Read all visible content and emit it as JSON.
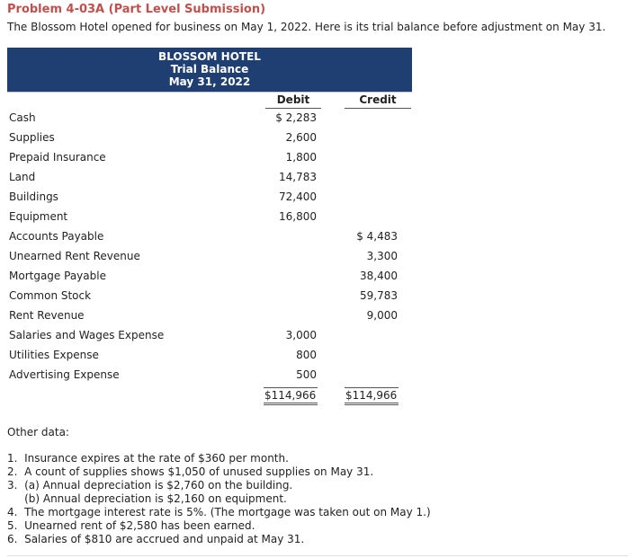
{
  "problem_title": "Problem 4-03A (Part Level Submission)",
  "intro": "The Blossom Hotel opened for business on May 1, 2022. Here is its trial balance before adjustment on May 31.",
  "trial_balance": {
    "company": "BLOSSOM HOTEL",
    "statement": "Trial Balance",
    "date": "May 31, 2022",
    "debit_header": "Debit",
    "credit_header": "Credit",
    "accounts": [
      {
        "name": "Cash",
        "debit": "$ 2,283",
        "credit": ""
      },
      {
        "name": "Supplies",
        "debit": "2,600",
        "credit": ""
      },
      {
        "name": "Prepaid Insurance",
        "debit": "1,800",
        "credit": ""
      },
      {
        "name": "Land",
        "debit": "14,783",
        "credit": ""
      },
      {
        "name": "Buildings",
        "debit": "72,400",
        "credit": ""
      },
      {
        "name": "Equipment",
        "debit": "16,800",
        "credit": ""
      },
      {
        "name": "Accounts Payable",
        "debit": "",
        "credit": "$ 4,483"
      },
      {
        "name": "Unearned Rent Revenue",
        "debit": "",
        "credit": "3,300"
      },
      {
        "name": "Mortgage Payable",
        "debit": "",
        "credit": "38,400"
      },
      {
        "name": "Common Stock",
        "debit": "",
        "credit": "59,783"
      },
      {
        "name": "Rent Revenue",
        "debit": "",
        "credit": "9,000"
      },
      {
        "name": "Salaries and Wages Expense",
        "debit": "3,000",
        "credit": ""
      },
      {
        "name": "Utilities Expense",
        "debit": "800",
        "credit": ""
      },
      {
        "name": "Advertising Expense",
        "debit": "500",
        "credit": ""
      }
    ],
    "total_debit": "$114,966",
    "total_credit": "$114,966"
  },
  "other_data_label": "Other data:",
  "other_data": [
    "1.  Insurance expires at the rate of $360 per month.",
    "2.  A count of supplies shows $1,050 of unused supplies on May 31.",
    "3.  (a) Annual depreciation is $2,760 on the building.",
    "     (b) Annual depreciation is $2,160 on equipment.",
    "4.  The mortgage interest rate is 5%. (The mortgage was taken out on May 1.)",
    "5.  Unearned rent of $2,580 has been earned.",
    "6.  Salaries of $810 are accrued and unpaid at May 31."
  ]
}
